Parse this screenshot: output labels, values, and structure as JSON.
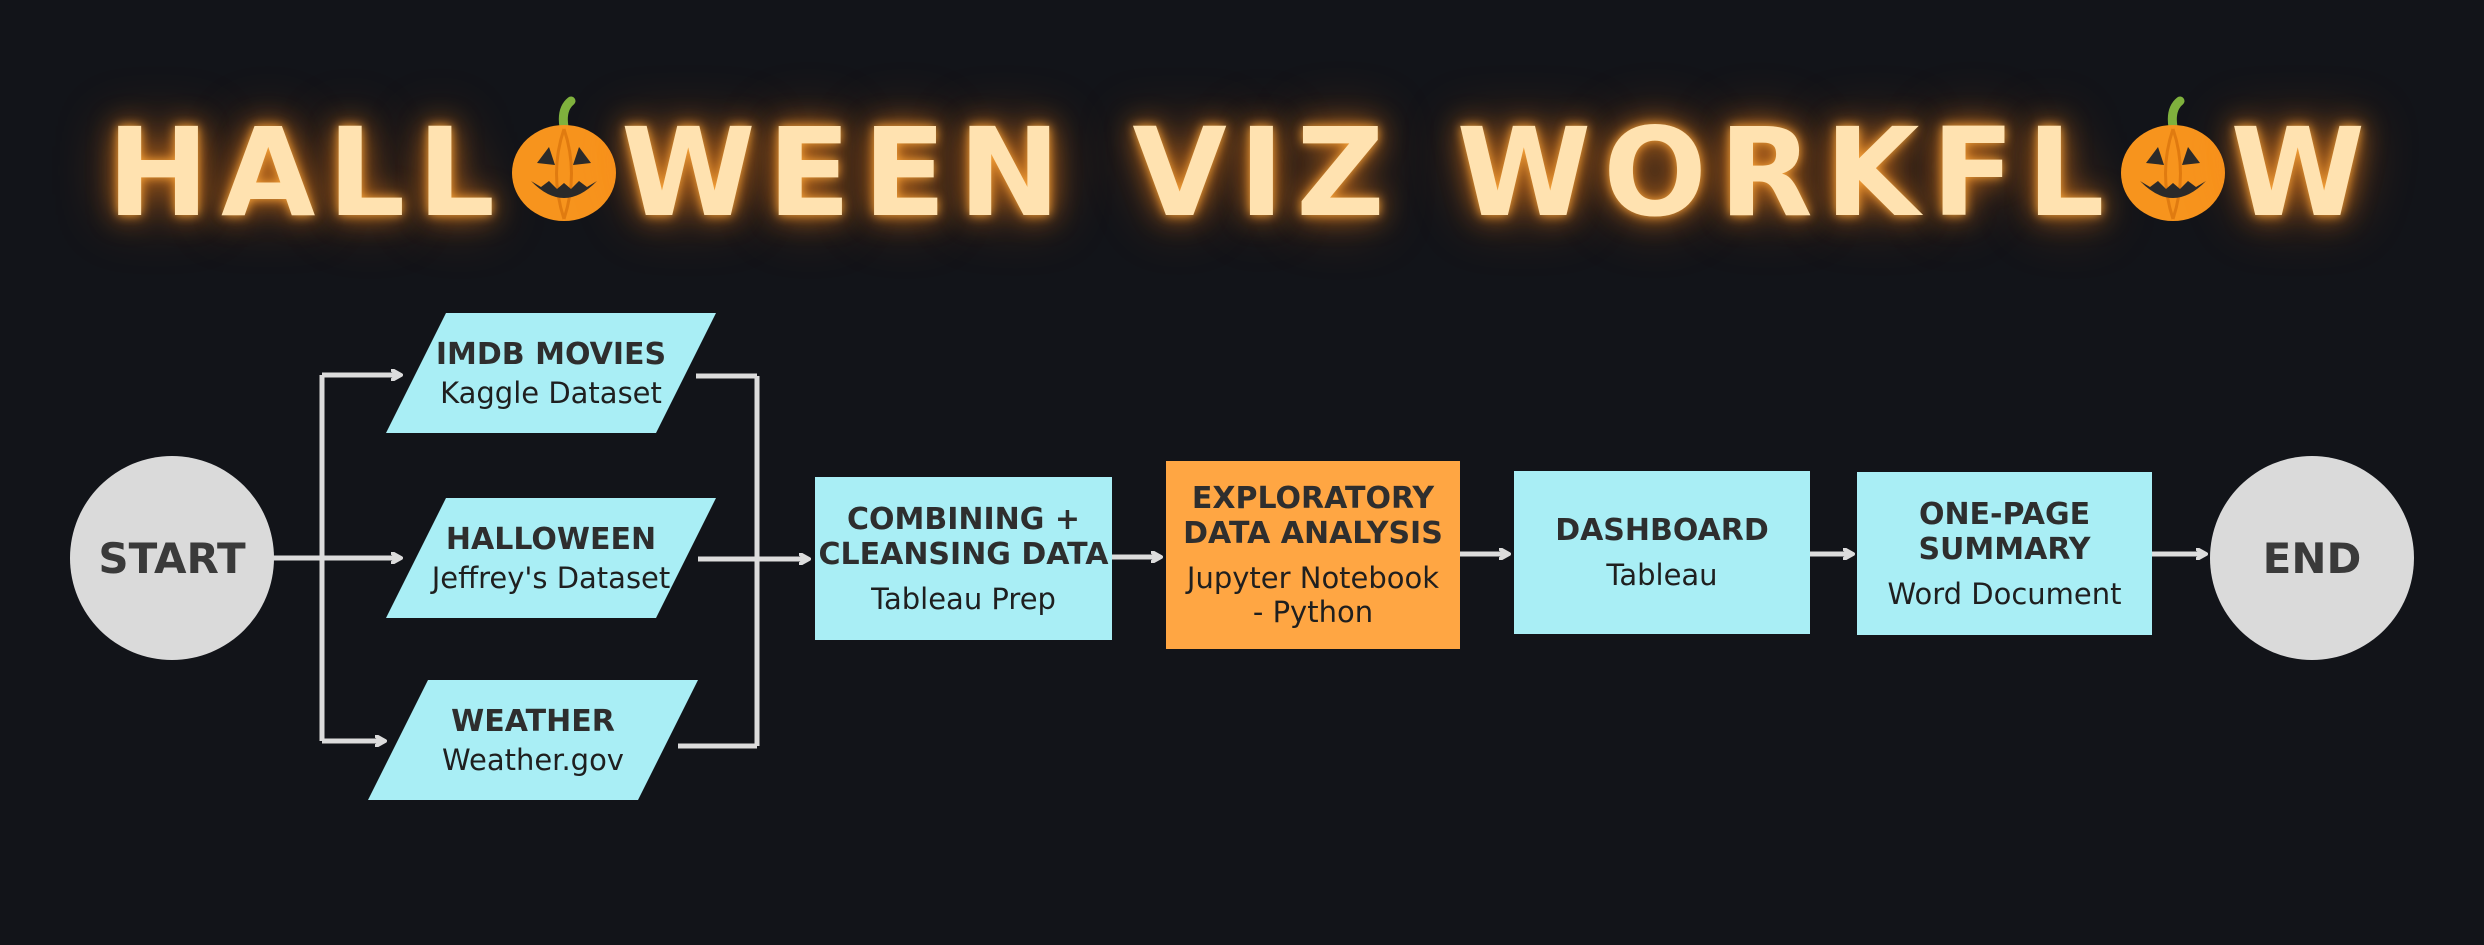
{
  "title": {
    "part1": "HALL",
    "part2": "WEEN",
    "part3": "VIZ",
    "part4": "WORKFL",
    "part5": "W"
  },
  "nodes": {
    "start": "START",
    "end": "END",
    "imdb": {
      "title": "IMDB MOVIES",
      "sub": "Kaggle Dataset"
    },
    "halloween": {
      "title": "HALLOWEEN",
      "sub": "Jeffrey's Dataset"
    },
    "weather": {
      "title": "WEATHER",
      "sub": "Weather.gov"
    },
    "combine": {
      "title_line1": "COMBINING +",
      "title_line2": "CLEANSING DATA",
      "sub": "Tableau Prep"
    },
    "eda": {
      "title_line1": "EXPLORATORY",
      "title_line2": "DATA ANALYSIS",
      "sub_line1": "Jupyter Notebook",
      "sub_line2": "- Python"
    },
    "dashboard": {
      "title": "DASHBOARD",
      "sub": "Tableau"
    },
    "summary": {
      "title_line1": "ONE-PAGE",
      "title_line2": "SUMMARY",
      "sub": "Word Document"
    }
  },
  "colors": {
    "background": "#121419",
    "box": "#A9EEF5",
    "highlight": "#FFA643",
    "circle": "#DADADA",
    "connector": "#DCDCDC",
    "title_glow": "#FFE2B0",
    "pumpkin": "#F7941D",
    "stem": "#7FB13D"
  },
  "icons": [
    "pumpkin-icon"
  ]
}
